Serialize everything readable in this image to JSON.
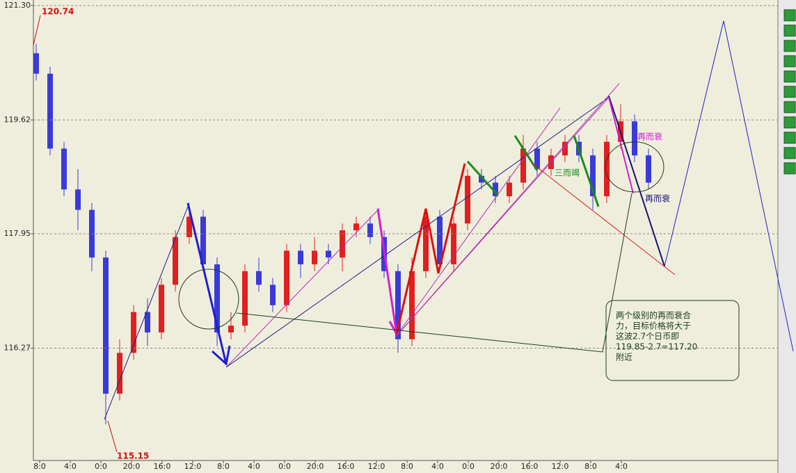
{
  "chart_data": {
    "type": "candlestick",
    "up_color": "#e02020",
    "down_color": "#3a3ad8",
    "ylim": [
      114.62,
      121.3
    ],
    "yticks": [
      {
        "value": 121.3,
        "label": "121.30"
      },
      119.62,
      117.95,
      116.27
    ],
    "grid": true,
    "xtick_labels": [
      "8:0",
      "4:0",
      "0:0",
      "20:0",
      "16:0",
      "12:0",
      "8:0",
      "4:0",
      "0:0",
      "20:0",
      "16:0",
      "12:0",
      "8:0",
      "4:0",
      "0:0",
      "20:0",
      "16:0",
      "12:0",
      "8:0",
      "4:0"
    ],
    "open": [
      120.6,
      120.3,
      119.2,
      118.6,
      118.3,
      117.6,
      115.6,
      116.2,
      116.8,
      116.5,
      117.2,
      117.9,
      118.2,
      117.5,
      116.5,
      116.6,
      117.4,
      117.2,
      116.9,
      117.7,
      117.5,
      117.7,
      117.6,
      118.0,
      118.1,
      117.9,
      117.4,
      116.4,
      117.4,
      118.2,
      117.5,
      118.1,
      118.8,
      118.7,
      118.5,
      118.7,
      119.2,
      118.9,
      119.1,
      119.3,
      119.1,
      118.5,
      119.3,
      119.6,
      119.1
    ],
    "high": [
      120.74,
      120.4,
      119.3,
      118.9,
      118.4,
      117.7,
      116.4,
      116.9,
      117.0,
      117.3,
      118.0,
      118.3,
      118.3,
      117.6,
      116.8,
      117.5,
      117.6,
      117.3,
      117.8,
      117.8,
      117.9,
      117.8,
      118.1,
      118.2,
      118.2,
      118.0,
      117.5,
      117.6,
      118.3,
      118.3,
      118.2,
      118.9,
      118.9,
      118.8,
      118.8,
      119.4,
      119.3,
      119.2,
      119.4,
      119.4,
      119.2,
      119.4,
      119.85,
      119.7,
      119.2
    ],
    "low": [
      120.2,
      119.1,
      118.5,
      118.0,
      117.4,
      115.15,
      115.5,
      116.1,
      116.3,
      116.4,
      117.1,
      117.8,
      117.4,
      116.3,
      116.4,
      116.5,
      117.1,
      116.8,
      116.8,
      117.3,
      117.4,
      117.5,
      117.4,
      117.9,
      117.8,
      117.3,
      116.2,
      116.3,
      117.3,
      117.4,
      117.4,
      118.0,
      118.6,
      118.4,
      118.4,
      118.6,
      118.8,
      118.8,
      119.0,
      119.0,
      118.3,
      118.4,
      119.2,
      119.0,
      118.6
    ],
    "close": [
      120.3,
      119.2,
      118.6,
      118.3,
      117.6,
      115.6,
      116.2,
      116.8,
      116.5,
      117.2,
      117.9,
      118.2,
      117.5,
      116.5,
      116.6,
      117.4,
      117.2,
      116.9,
      117.7,
      117.5,
      117.7,
      117.6,
      118.0,
      118.1,
      117.9,
      117.4,
      116.4,
      117.4,
      118.2,
      117.5,
      118.1,
      118.8,
      118.7,
      118.5,
      118.7,
      119.2,
      118.9,
      119.1,
      119.3,
      119.1,
      118.5,
      119.3,
      119.6,
      119.1,
      118.7
    ],
    "annotations": {
      "high_label": "120.74",
      "low_label": "115.15",
      "label_a": "再而衰",
      "label_b": "再而衰",
      "label_c": "三而竭",
      "note": [
        "两个级别的再而衰合",
        "力，目标价格将大于",
        "这波2.7个日币即",
        "119.85-2.7=117.20",
        "附近"
      ]
    }
  }
}
